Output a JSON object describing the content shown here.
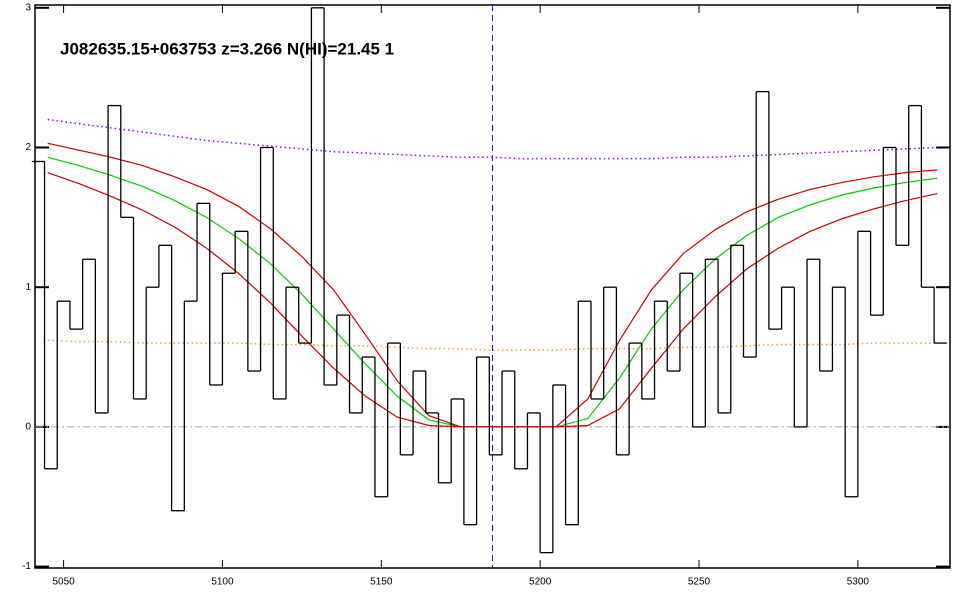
{
  "chart_data": {
    "type": "step",
    "title": "J082635.15+063753 z=3.266 N(HI)=21.45 1",
    "xlim": [
      5041,
      5329
    ],
    "ylim": [
      -1.01,
      3.02
    ],
    "xticks": [
      5050,
      5100,
      5150,
      5200,
      5250,
      5300
    ],
    "yticks": [
      -1,
      0,
      1,
      2,
      3
    ],
    "color": "#000000",
    "x": [
      5042,
      5046,
      5050,
      5054,
      5058,
      5062,
      5066,
      5070,
      5074,
      5078,
      5082,
      5086,
      5090,
      5094,
      5098,
      5102,
      5106,
      5110,
      5114,
      5118,
      5122,
      5126,
      5130,
      5134,
      5138,
      5142,
      5146,
      5150,
      5154,
      5158,
      5162,
      5166,
      5170,
      5174,
      5178,
      5182,
      5186,
      5190,
      5194,
      5198,
      5202,
      5206,
      5210,
      5214,
      5218,
      5222,
      5226,
      5230,
      5234,
      5238,
      5242,
      5246,
      5250,
      5254,
      5258,
      5262,
      5266,
      5270,
      5274,
      5278,
      5282,
      5286,
      5290,
      5294,
      5298,
      5302,
      5306,
      5310,
      5314,
      5318,
      5322,
      5326
    ],
    "values": [
      1.9,
      -0.3,
      0.9,
      0.7,
      1.2,
      0.1,
      2.3,
      1.5,
      0.2,
      1.0,
      1.3,
      -0.6,
      0.9,
      1.6,
      0.3,
      1.1,
      1.4,
      0.4,
      2.0,
      0.2,
      1.0,
      0.6,
      3.0,
      0.3,
      0.8,
      0.1,
      0.5,
      -0.5,
      0.6,
      -0.2,
      0.4,
      0.1,
      -0.4,
      0.2,
      -0.7,
      0.5,
      -0.2,
      0.4,
      -0.3,
      0.1,
      -0.9,
      0.3,
      -0.7,
      0.9,
      0.2,
      1.0,
      -0.2,
      0.6,
      0.2,
      0.9,
      0.4,
      1.1,
      0.0,
      1.2,
      0.1,
      1.3,
      0.5,
      2.4,
      0.7,
      1.0,
      0.0,
      1.2,
      0.4,
      1.0,
      -0.5,
      1.4,
      0.8,
      2.0,
      1.3,
      2.3,
      1.0,
      0.6
    ],
    "series": [
      {
        "color": "#00cc00",
        "style": "solid",
        "x": [
          5045,
          5055,
          5065,
          5075,
          5085,
          5095,
          5105,
          5115,
          5125,
          5135,
          5145,
          5155,
          5165,
          5175,
          5185,
          5195,
          5205,
          5215,
          5225,
          5235,
          5245,
          5255,
          5265,
          5275,
          5285,
          5295,
          5305,
          5315,
          5325
        ],
        "values": [
          1.93,
          1.87,
          1.8,
          1.72,
          1.62,
          1.5,
          1.35,
          1.17,
          0.95,
          0.7,
          0.45,
          0.22,
          0.05,
          0,
          0,
          0,
          0,
          0.06,
          0.35,
          0.7,
          0.98,
          1.2,
          1.37,
          1.5,
          1.59,
          1.66,
          1.71,
          1.75,
          1.78
        ]
      },
      {
        "color": "#cc0000",
        "style": "solid",
        "x": [
          5045,
          5055,
          5065,
          5075,
          5085,
          5095,
          5105,
          5115,
          5125,
          5135,
          5145,
          5155,
          5165,
          5175,
          5185,
          5195,
          5205,
          5215,
          5225,
          5235,
          5245,
          5255,
          5265,
          5275,
          5285,
          5295,
          5305,
          5315,
          5325
        ],
        "values": [
          2.03,
          1.98,
          1.93,
          1.87,
          1.79,
          1.7,
          1.58,
          1.42,
          1.22,
          0.98,
          0.66,
          0.33,
          0.08,
          0,
          0,
          0,
          0,
          0.2,
          0.62,
          0.98,
          1.24,
          1.41,
          1.54,
          1.63,
          1.7,
          1.75,
          1.79,
          1.82,
          1.84
        ]
      },
      {
        "color": "#cc0000",
        "style": "solid",
        "x": [
          5045,
          5055,
          5065,
          5075,
          5085,
          5095,
          5105,
          5115,
          5125,
          5135,
          5145,
          5155,
          5165,
          5175,
          5185,
          5195,
          5205,
          5215,
          5225,
          5235,
          5245,
          5255,
          5265,
          5275,
          5285,
          5295,
          5305,
          5315,
          5325
        ],
        "values": [
          1.82,
          1.74,
          1.65,
          1.55,
          1.43,
          1.28,
          1.1,
          0.89,
          0.65,
          0.42,
          0.22,
          0.07,
          0.01,
          0,
          0,
          0,
          0,
          0.01,
          0.13,
          0.42,
          0.7,
          0.93,
          1.13,
          1.28,
          1.4,
          1.49,
          1.56,
          1.62,
          1.67
        ]
      },
      {
        "color": "#9900ff",
        "style": "dotted",
        "x": [
          5045,
          5055,
          5065,
          5075,
          5085,
          5095,
          5105,
          5115,
          5125,
          5135,
          5145,
          5155,
          5165,
          5175,
          5185,
          5195,
          5205,
          5215,
          5225,
          5235,
          5245,
          5255,
          5265,
          5275,
          5285,
          5295,
          5305,
          5315,
          5325
        ],
        "values": [
          2.2,
          2.17,
          2.14,
          2.11,
          2.08,
          2.05,
          2.03,
          2.01,
          1.99,
          1.97,
          1.96,
          1.95,
          1.94,
          1.93,
          1.93,
          1.92,
          1.92,
          1.92,
          1.92,
          1.92,
          1.93,
          1.93,
          1.94,
          1.95,
          1.96,
          1.97,
          1.98,
          1.99,
          2.0
        ]
      },
      {
        "color": "#ff9933",
        "style": "dotted",
        "x": [
          5045,
          5055,
          5065,
          5075,
          5085,
          5095,
          5105,
          5115,
          5125,
          5135,
          5145,
          5155,
          5165,
          5175,
          5185,
          5195,
          5205,
          5215,
          5225,
          5235,
          5245,
          5255,
          5265,
          5275,
          5285,
          5295,
          5305,
          5315,
          5325
        ],
        "values": [
          0.62,
          0.61,
          0.61,
          0.6,
          0.6,
          0.6,
          0.6,
          0.59,
          0.59,
          0.58,
          0.58,
          0.57,
          0.56,
          0.56,
          0.55,
          0.55,
          0.55,
          0.56,
          0.56,
          0.56,
          0.57,
          0.57,
          0.58,
          0.59,
          0.59,
          0.59,
          0.6,
          0.6,
          0.6
        ]
      }
    ],
    "hlines": [
      {
        "y": 0,
        "color": "#aaaaaa",
        "style": "dashdot"
      }
    ],
    "vlines": [
      {
        "x": 5185,
        "color": "#1a1acc",
        "style": "dashed"
      }
    ]
  }
}
